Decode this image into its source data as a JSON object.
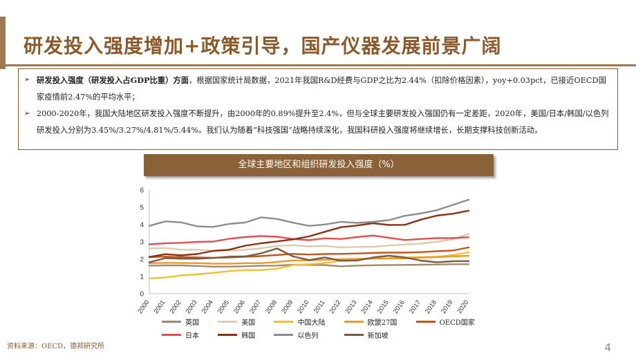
{
  "slide": {
    "title": "研发投入强度增加+政策引导，国产仪器发展前景广阔",
    "bullets": [
      {
        "marker": "➢",
        "lead": "研发投入强度（研发投入占GDP比重）方面",
        "text": "，根据国家统计局数据，2021年我国R&D经费与GDP之比为2.44%（扣除价格因素），yoy+0.03pct，已接近OECD国家疫情前2.47%的平均水平；"
      },
      {
        "marker": "➢",
        "lead": "",
        "text": "2000-2020年，我国大陆地区研发投入强度不断提升，由2000年的0.89%提升至2.4%，但与全球主要研发投入强国仍有一定差距，2020年，美国/日本/韩国/以色列研发投入分别为3.45%/3.27%/4.81%/5.44%。我们认为随着“科技强国”战略持续深化，我国科研投入强度将继续增长，长期支撑科技创新活动。"
      }
    ],
    "source": "资料来源：OECD，德邦研究所",
    "page_number": "4"
  },
  "chart_data": {
    "type": "line",
    "title": "全球主要地区和组织研发投入强度（%）",
    "x": [
      "2000",
      "2001",
      "2002",
      "2003",
      "2004",
      "2005",
      "2006",
      "2007",
      "2008",
      "2009",
      "2010",
      "2011",
      "2012",
      "2013",
      "2014",
      "2015",
      "2016",
      "2017",
      "2018",
      "2019",
      "2020"
    ],
    "ylim": [
      0,
      6
    ],
    "yticks": [
      "0",
      "1",
      "2",
      "3",
      "4",
      "5",
      "6"
    ],
    "legend_position": "bottom",
    "series": [
      {
        "name": "英国",
        "color": "#a08a6a",
        "values": [
          1.63,
          1.64,
          1.64,
          1.61,
          1.57,
          1.57,
          1.59,
          1.62,
          1.63,
          1.68,
          1.67,
          1.66,
          1.59,
          1.63,
          1.65,
          1.66,
          1.67,
          1.68,
          1.69,
          1.71,
          1.71
        ]
      },
      {
        "name": "美国",
        "color": "#d9cdb0",
        "values": [
          2.62,
          2.64,
          2.55,
          2.55,
          2.49,
          2.5,
          2.55,
          2.63,
          2.77,
          2.81,
          2.74,
          2.77,
          2.68,
          2.71,
          2.72,
          2.79,
          2.85,
          2.9,
          3.01,
          3.15,
          3.45
        ]
      },
      {
        "name": "中国大陆",
        "color": "#f0c030",
        "values": [
          0.89,
          0.94,
          1.06,
          1.12,
          1.21,
          1.31,
          1.37,
          1.37,
          1.45,
          1.66,
          1.71,
          1.78,
          1.91,
          1.99,
          2.02,
          2.06,
          2.1,
          2.12,
          2.14,
          2.24,
          2.4
        ]
      },
      {
        "name": "欧盟27国",
        "color": "#e89a2a",
        "values": [
          1.77,
          1.79,
          1.78,
          1.77,
          1.74,
          1.74,
          1.77,
          1.77,
          1.84,
          1.93,
          1.93,
          1.97,
          2.0,
          2.02,
          2.03,
          2.04,
          2.04,
          2.09,
          2.12,
          2.16,
          2.2
        ]
      },
      {
        "name": "OECD国家",
        "color": "#c0551a",
        "values": [
          2.12,
          2.15,
          2.12,
          2.1,
          2.08,
          2.1,
          2.14,
          2.18,
          2.24,
          2.31,
          2.27,
          2.3,
          2.31,
          2.33,
          2.36,
          2.38,
          2.38,
          2.41,
          2.46,
          2.5,
          2.68
        ]
      },
      {
        "name": "日本",
        "color": "#e05050",
        "values": [
          2.86,
          2.92,
          2.95,
          3.0,
          3.02,
          3.18,
          3.28,
          3.34,
          3.3,
          3.17,
          3.1,
          3.21,
          3.17,
          3.28,
          3.37,
          3.24,
          3.11,
          3.17,
          3.22,
          3.22,
          3.27
        ]
      },
      {
        "name": "韩国",
        "color": "#8b3010",
        "values": [
          2.13,
          2.29,
          2.22,
          2.3,
          2.48,
          2.55,
          2.78,
          2.92,
          3.03,
          3.15,
          3.32,
          3.59,
          3.85,
          3.95,
          4.08,
          3.98,
          3.99,
          4.29,
          4.52,
          4.63,
          4.81
        ]
      },
      {
        "name": "以色列",
        "color": "#8c8c8c",
        "values": [
          3.93,
          4.19,
          4.13,
          3.9,
          3.87,
          4.04,
          4.12,
          4.42,
          4.33,
          4.11,
          3.93,
          4.01,
          4.16,
          4.1,
          4.16,
          4.26,
          4.51,
          4.65,
          4.83,
          5.14,
          5.44
        ]
      },
      {
        "name": "新加坡",
        "color": "#7a5a40",
        "values": [
          1.82,
          2.06,
          2.03,
          2.03,
          2.07,
          2.15,
          2.16,
          2.34,
          2.62,
          2.16,
          1.95,
          2.1,
          1.91,
          1.92,
          2.1,
          2.2,
          2.1,
          1.92,
          1.82,
          1.88,
          1.89
        ]
      }
    ]
  }
}
